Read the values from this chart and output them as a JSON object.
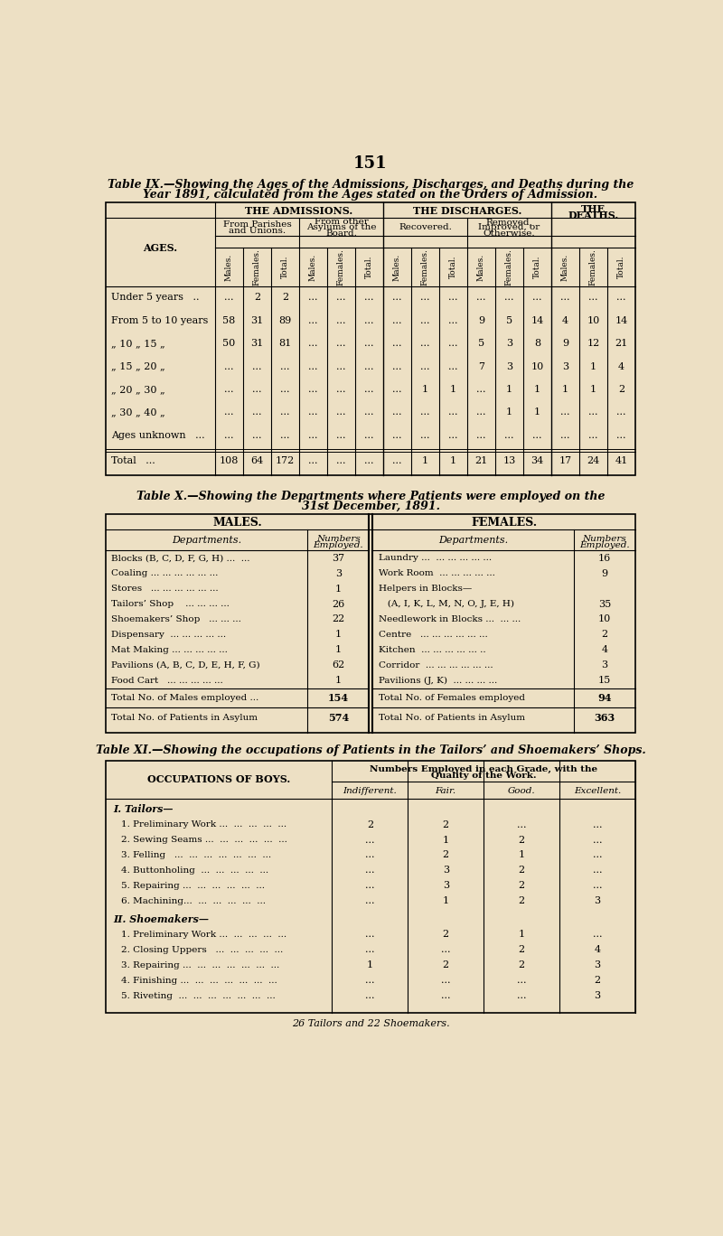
{
  "bg_color": "#ede0c4",
  "page_number": "151",
  "t9_title1": "Table IX.—Showing the Ages of the Admissions, Discharges, and Deaths during the",
  "t9_title2": "Year 1891, calculated from the Ages stated on the Orders of Admission.",
  "t9_row_labels": [
    "Under 5 years   ..",
    "From 5 to 10 years",
    "„ 10 „ 15 „",
    "„ 15 „ 20 „",
    "„ 20 „ 30 „",
    "„ 30 „ 40 „",
    "Ages unknown   ...",
    "Total   ..."
  ],
  "t9_data": [
    [
      "...",
      "2",
      "2",
      "...",
      "...",
      "...",
      "...",
      "...",
      "...",
      "...",
      "...",
      "...",
      "...",
      "...",
      "..."
    ],
    [
      "58",
      "31",
      "89",
      "...",
      "...",
      "...",
      "...",
      "...",
      "...",
      "9",
      "5",
      "14",
      "4",
      "10",
      "14"
    ],
    [
      "50",
      "31",
      "81",
      "...",
      "...",
      "...",
      "...",
      "...",
      "...",
      "5",
      "3",
      "8",
      "9",
      "12",
      "21"
    ],
    [
      "...",
      "...",
      "...",
      "...",
      "...",
      "...",
      "...",
      "...",
      "...",
      "7",
      "3",
      "10",
      "3",
      "1",
      "4"
    ],
    [
      "...",
      "...",
      "...",
      "...",
      "...",
      "...",
      "...",
      "1",
      "1",
      "...",
      "1",
      "1",
      "1",
      "1",
      "2"
    ],
    [
      "...",
      "...",
      "...",
      "...",
      "...",
      "...",
      "...",
      "...",
      "...",
      "...",
      "1",
      "1",
      "...",
      "...",
      "..."
    ],
    [
      "...",
      "...",
      "...",
      "...",
      "...",
      "...",
      "...",
      "...",
      "...",
      "...",
      "...",
      "...",
      "...",
      "...",
      "..."
    ],
    [
      "108",
      "64",
      "172",
      "...",
      "...",
      "...",
      "...",
      "1",
      "1",
      "21",
      "13",
      "34",
      "17",
      "24",
      "41"
    ]
  ],
  "t10_title1": "Table X.—Showing the Departments where Patients were employed on the",
  "t10_title2": "31st December, 1891.",
  "t10_male_depts": [
    [
      "Blocks (B, C, D, F, G, H) ...  ...",
      "37"
    ],
    [
      "Coaling ... ... ... ... ... ...",
      "3"
    ],
    [
      "Stores   ... ... ... ... ... ...",
      "1"
    ],
    [
      "Tailors’ Shop    ... ... ... ...",
      "26"
    ],
    [
      "Shoemakers’ Shop   ... ... ...",
      "22"
    ],
    [
      "Dispensary  ... ... ... ... ...",
      "1"
    ],
    [
      "Mat Making ... ... ... ... ...",
      "1"
    ],
    [
      "Pavilions (A, B, C, D, E, H, F, G)",
      "62"
    ],
    [
      "Food Cart   ... ... ... ... ...",
      "1"
    ]
  ],
  "t10_female_depts": [
    [
      "Laundry ...  ... ... ... ... ...",
      "16"
    ],
    [
      "Work Room  ... ... ... ... ...",
      "9"
    ],
    [
      "Helpers in Blocks—",
      ""
    ],
    [
      "   (A, I, K, L, M, N, O, J, E, H)",
      "35"
    ],
    [
      "Needlework in Blocks ...  ... ...",
      "10"
    ],
    [
      "Centre   ... ... ... ... ... ...",
      "2"
    ],
    [
      "Kitchen  ... ... ... ... ... ..",
      "4"
    ],
    [
      "Corridor  ... ... ... ... ... ...",
      "3"
    ],
    [
      "Pavilions (J, K)  ... ... ... ...",
      "15"
    ]
  ],
  "t10_male_emp": "154",
  "t10_female_emp": "94",
  "t10_male_pat": "574",
  "t10_female_pat": "363",
  "t11_title": "Table XI.—Showing the occupations of Patients in the Tailors’ and Shoemakers’ Shops.",
  "t11_grade_headers": [
    "Indifferent.",
    "Fair.",
    "Good.",
    "Excellent."
  ],
  "t11_sections": [
    {
      "header": "I. Tailors—",
      "rows": [
        [
          "1. Preliminary Work ...  ...  ...  ...  ...",
          "2",
          "2",
          "...",
          "..."
        ],
        [
          "2. Sewing Seams ...  ...  ...  ...  ...  ...",
          "...",
          "1",
          "2",
          "..."
        ],
        [
          "3. Felling   ...  ...  ...  ...  ...  ...  ...",
          "...",
          "2",
          "1",
          "..."
        ],
        [
          "4. Buttonholing  ...  ...  ...  ...  ...",
          "...",
          "3",
          "2",
          "..."
        ],
        [
          "5. Repairing ...  ...  ...  ...  ...  ...",
          "...",
          "3",
          "2",
          "..."
        ],
        [
          "6. Machining...  ...  ...  ...  ...  ...",
          "...",
          "1",
          "2",
          "3"
        ]
      ]
    },
    {
      "header": "II. Shoemakers—",
      "rows": [
        [
          "1. Preliminary Work ...  ...  ...  ...  ...",
          "...",
          "2",
          "1",
          "..."
        ],
        [
          "2. Closing Uppers   ...  ...  ...  ...  ...",
          "...",
          "...",
          "2",
          "4"
        ],
        [
          "3. Repairing ...  ...  ...  ...  ...  ...  ...",
          "1",
          "2",
          "2",
          "3"
        ],
        [
          "4. Finishing ...  ...  ...  ...  ...  ...  ...",
          "...",
          "...",
          "...",
          "2"
        ],
        [
          "5. Riveting  ...  ...  ...  ...  ...  ...  ...",
          "...",
          "...",
          "...",
          "3"
        ]
      ]
    }
  ],
  "t11_footer": "26 Tailors and 22 Shoemakers."
}
